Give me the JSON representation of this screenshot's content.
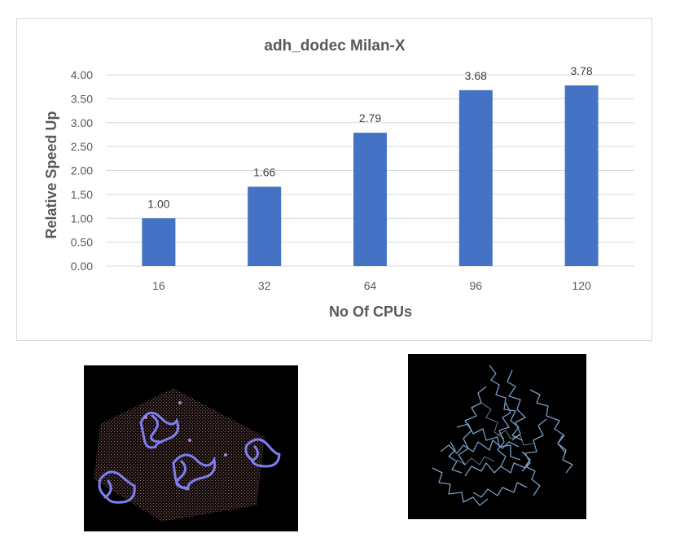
{
  "chart_data": {
    "type": "bar",
    "title": "adh_dodec Milan-X",
    "xlabel": "No Of CPUs",
    "ylabel": "Relative Speed Up",
    "categories": [
      "16",
      "32",
      "64",
      "96",
      "120"
    ],
    "values": [
      1.0,
      1.66,
      2.79,
      3.68,
      3.78
    ],
    "value_labels": [
      "1.00",
      "1.66",
      "2.79",
      "3.68",
      "3.78"
    ],
    "ylim": [
      0,
      4.0
    ],
    "yticks": [
      "0.00",
      "0.50",
      "1.00",
      "1.50",
      "2.00",
      "2.50",
      "3.00",
      "3.50",
      "4.00"
    ],
    "grid": true,
    "legend": "none",
    "bar_color": "#4472c4",
    "grid_color": "#d9d9d9"
  },
  "images": {
    "left": "protein-in-solvent-box-render",
    "right": "protein-ribbon-render"
  }
}
